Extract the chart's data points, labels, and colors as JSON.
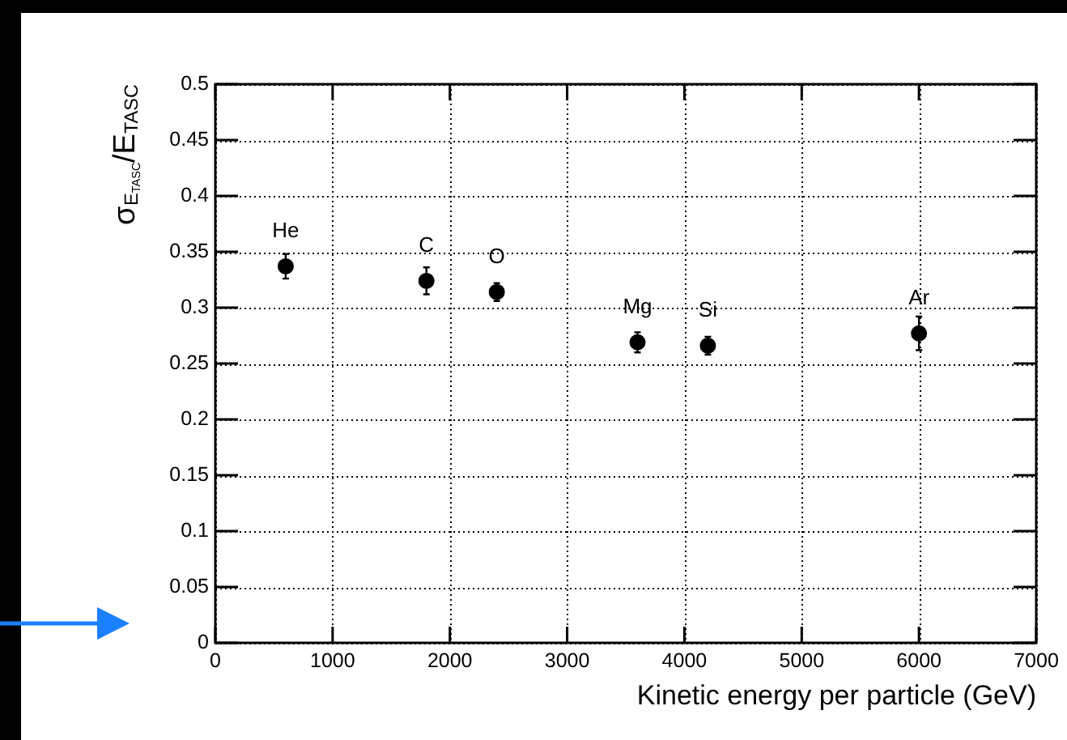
{
  "chart_data": {
    "type": "scatter",
    "xlabel": "Kinetic energy per particle (GeV)",
    "ylabel": "σ$_{E}$$_{TASC}$/E$_{TASC}$",
    "x": [
      600,
      1800,
      2400,
      3600,
      4200,
      6000
    ],
    "values": [
      0.337,
      0.324,
      0.314,
      0.269,
      0.266,
      0.277
    ],
    "errors": [
      0.011,
      0.012,
      0.008,
      0.009,
      0.008,
      0.015
    ],
    "color": "#000000",
    "marker": "circle",
    "grid": true,
    "xlim": [
      0,
      7000
    ],
    "xticks": [
      0,
      1000,
      2000,
      3000,
      4000,
      5000,
      6000,
      7000
    ],
    "ylim": [
      0,
      0.5
    ],
    "yticks": [
      0,
      0.05,
      0.1,
      0.15,
      0.2,
      0.25,
      0.3,
      0.35,
      0.4,
      0.45,
      0.5
    ],
    "annotations": [
      {
        "text": "He",
        "x": 600,
        "y": 0.337
      },
      {
        "text": "C",
        "x": 1800,
        "y": 0.324
      },
      {
        "text": "O",
        "x": 2400,
        "y": 0.314
      },
      {
        "text": "Mg",
        "x": 3600,
        "y": 0.269
      },
      {
        "text": "Si",
        "x": 4200,
        "y": 0.266
      },
      {
        "text": "Ar",
        "x": 6000,
        "y": 0.277
      }
    ]
  }
}
